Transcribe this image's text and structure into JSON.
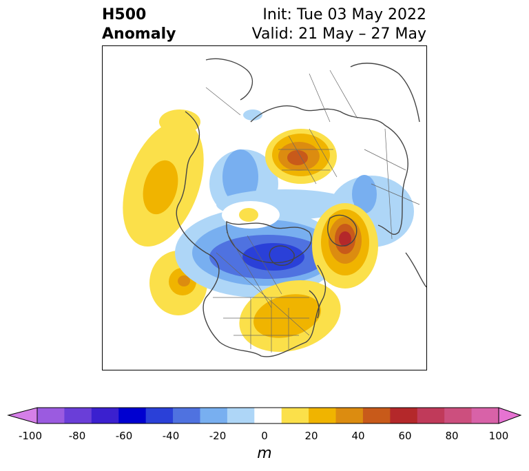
{
  "header": {
    "left_line1": "H500",
    "left_line2": "Anomaly",
    "right_line1": "Init: Tue 03 May 2022",
    "right_line2": "Valid: 21 May – 27 May"
  },
  "map": {
    "projection": "north-polar stereographic",
    "anomalies": [
      {
        "region": "Alaska / NE Pacific",
        "sign": "positive",
        "peak_m": 30
      },
      {
        "region": "North Pacific (south of Alaska)",
        "sign": "positive",
        "peak_m": 40
      },
      {
        "region": "Western Russia",
        "sign": "positive",
        "peak_m": 50
      },
      {
        "region": "North Atlantic / Greenland east",
        "sign": "positive",
        "peak_m": 70
      },
      {
        "region": "Eastern United States",
        "sign": "positive",
        "peak_m": 30
      },
      {
        "region": "Canadian Arctic / Hudson Bay",
        "sign": "negative",
        "peak_m": -50
      },
      {
        "region": "Siberia",
        "sign": "negative",
        "peak_m": -30
      },
      {
        "region": "Eastern Europe / Scandinavia",
        "sign": "negative",
        "peak_m": -20
      }
    ]
  },
  "colorbar": {
    "unit": "m",
    "ticks": [
      "-100",
      "-80",
      "-60",
      "-40",
      "-20",
      "0",
      "20",
      "40",
      "60",
      "80",
      "100"
    ],
    "colors": [
      "#d57fe8",
      "#9b5be0",
      "#6a3ed8",
      "#3b20cf",
      "#0000d0",
      "#2a40d8",
      "#4f72e0",
      "#78aff0",
      "#aed6f7",
      "#ffffff",
      "#fbe04a",
      "#f0b400",
      "#dc8c10",
      "#c85a1a",
      "#b4282a",
      "#c03a5a",
      "#cc4f7e",
      "#d862a8",
      "#e673d2"
    ]
  }
}
